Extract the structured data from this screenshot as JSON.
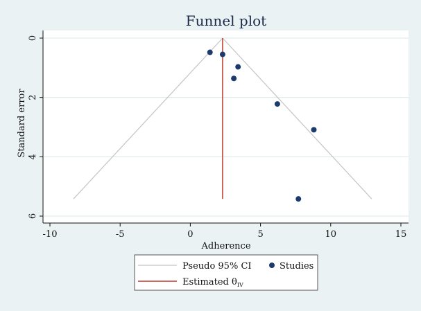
{
  "chart_data": {
    "type": "scatter",
    "title": "Funnel plot",
    "xlabel": "Adherence",
    "ylabel": "Standard error",
    "xlim": [
      -10,
      15
    ],
    "ylim": [
      0,
      6
    ],
    "y_reversed": true,
    "x_ticks": [
      "-10",
      "-5",
      "0",
      "5",
      "10",
      "15"
    ],
    "y_ticks": [
      "0",
      "2",
      "4",
      "6"
    ],
    "grid": "horizontal",
    "studies": {
      "name": "Studies",
      "x": [
        1.4,
        2.3,
        3.4,
        3.1,
        6.2,
        8.8,
        7.7
      ],
      "y": [
        0.48,
        0.55,
        0.97,
        1.36,
        2.22,
        3.09,
        5.42
      ]
    },
    "estimate": 2.3,
    "ci_max_se": 5.42,
    "legend": {
      "position": "bottom",
      "items": [
        {
          "label": "Pseudo 95% CI",
          "kind": "line",
          "color": "#c4c4c4"
        },
        {
          "label": "Studies",
          "kind": "marker",
          "color": "#1c3a6b"
        },
        {
          "label": "Estimated θ",
          "subscript": "IV",
          "kind": "line",
          "color": "#c0392b"
        }
      ]
    },
    "colors": {
      "background": "#eaf2f3",
      "plot_area": "#ffffff",
      "grid": "#dbe7ea",
      "funnel": "#c4c4c4",
      "estimate": "#c0392b",
      "markers": "#1c3a6b",
      "title": "#1a2a4a"
    }
  }
}
